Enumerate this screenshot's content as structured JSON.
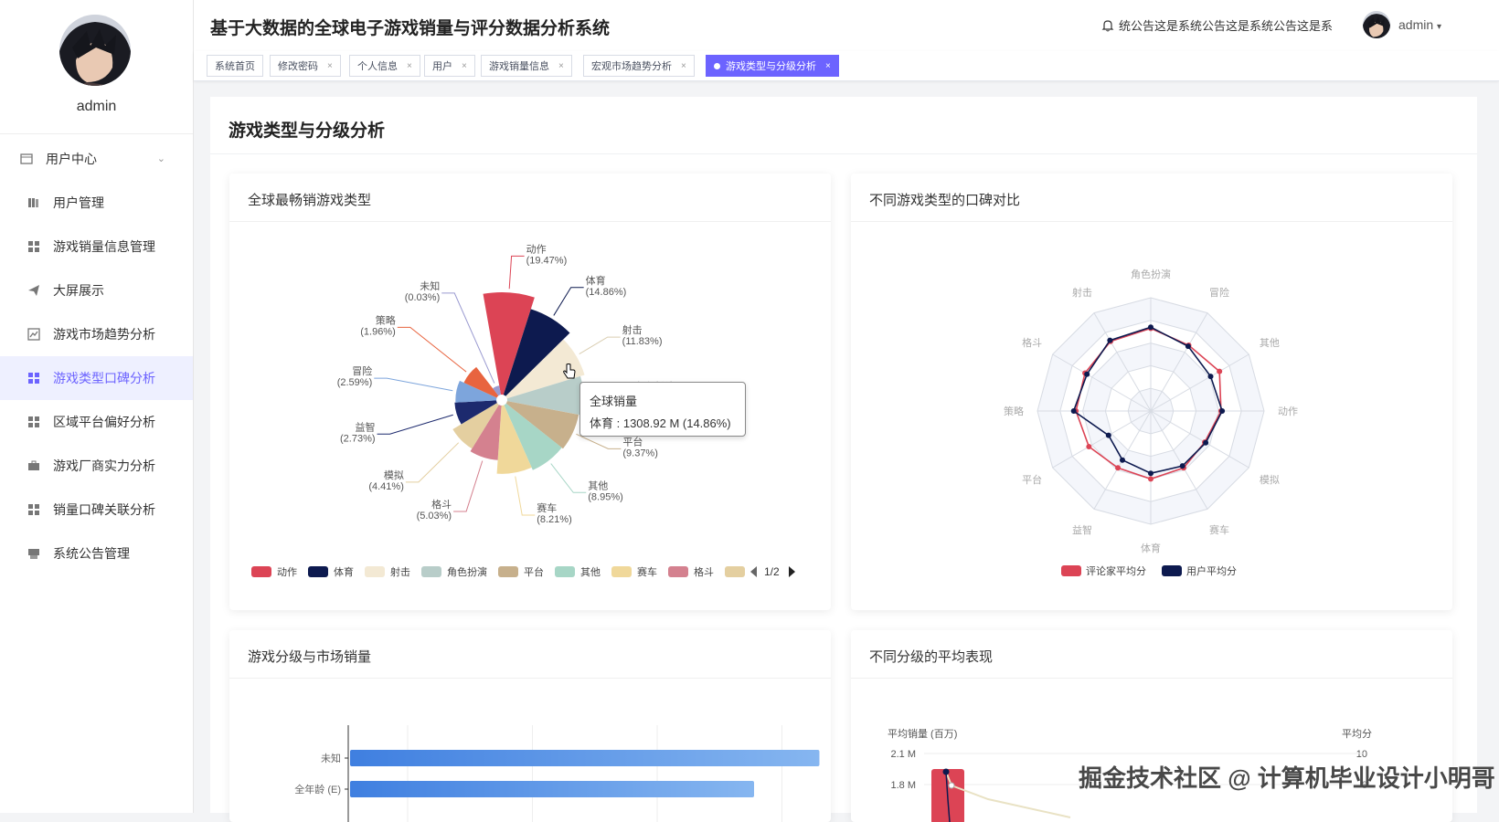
{
  "sidebar": {
    "username": "admin",
    "items": [
      {
        "label": "用户中心",
        "icon": "user-center-icon",
        "has_caret": true
      },
      {
        "label": "用户管理",
        "icon": "books-icon"
      },
      {
        "label": "游戏销量信息管理",
        "icon": "grid-icon"
      },
      {
        "label": "大屏展示",
        "icon": "send-icon"
      },
      {
        "label": "游戏市场趋势分析",
        "icon": "chart-icon"
      },
      {
        "label": "游戏类型口碑分析",
        "icon": "grid-icon",
        "active": true
      },
      {
        "label": "区域平台偏好分析",
        "icon": "grid-icon"
      },
      {
        "label": "游戏厂商实力分析",
        "icon": "briefcase-icon"
      },
      {
        "label": "销量口碑关联分析",
        "icon": "grid-icon"
      },
      {
        "label": "系统公告管理",
        "icon": "printer-icon"
      }
    ]
  },
  "header": {
    "title": "基于大数据的全球电子游戏销量与评分数据分析系统",
    "notice": "统公告这是系统公告这是系统公告这是系",
    "user": "admin"
  },
  "tabs": [
    {
      "label": "系统首页",
      "closable": false
    },
    {
      "label": "修改密码",
      "closable": true
    },
    {
      "label": "个人信息",
      "closable": true
    },
    {
      "label": "用户",
      "closable": true
    },
    {
      "label": "游戏销量信息",
      "closable": true
    },
    {
      "label": "宏观市场趋势分析",
      "closable": true
    },
    {
      "label": "游戏类型与分级分析",
      "closable": true,
      "active": true
    }
  ],
  "page": {
    "title": "游戏类型与分级分析"
  },
  "cards": {
    "pie_title": "全球最畅销游戏类型",
    "radar_title": "不同游戏类型的口碑对比",
    "bar_title": "游戏分级与市场销量",
    "dual_title": "不同分级的平均表现"
  },
  "tooltip": {
    "title": "全球销量",
    "value": "体育 : 1308.92 M (14.86%)"
  },
  "legend_pager": "1/2",
  "watermark": "掘金技术社区 @ 计算机毕业设计小明哥",
  "colors": {
    "accent": "#6c63ff",
    "red": "#dc4455",
    "navy": "#0d1a4f"
  },
  "chart_data": [
    {
      "type": "pie",
      "title": "全球最畅销游戏类型",
      "series": [
        {
          "name": "全球销量",
          "unit": "M",
          "values": [
            {
              "name": "动作",
              "pct": 19.47,
              "color": "#dc4455"
            },
            {
              "name": "体育",
              "pct": 14.86,
              "color": "#0d1a4f"
            },
            {
              "name": "射击",
              "pct": 11.83,
              "color": "#f3e9d4"
            },
            {
              "name": "角色扮演",
              "pct": null,
              "color": "#b8cdc9"
            },
            {
              "name": "平台",
              "pct": 9.37,
              "color": "#c7b08c"
            },
            {
              "name": "其他",
              "pct": 8.95,
              "color": "#a7d6c6"
            },
            {
              "name": "赛车",
              "pct": 8.21,
              "color": "#f0d89a"
            },
            {
              "name": "格斗",
              "pct": 5.03,
              "color": "#d4818f"
            },
            {
              "name": "模拟",
              "pct": 4.41,
              "color": "#e4cfa0"
            },
            {
              "name": "益智",
              "pct": 2.73,
              "color": "#1d2a6e"
            },
            {
              "name": "冒险",
              "pct": 2.59,
              "color": "#7da5dc"
            },
            {
              "name": "策略",
              "pct": 1.96,
              "color": "#e8643f"
            },
            {
              "name": "未知",
              "pct": 0.03,
              "color": "#9a9ad0"
            }
          ]
        }
      ],
      "legend_visible": [
        "动作",
        "体育",
        "射击",
        "角色扮演",
        "平台",
        "其他",
        "赛车",
        "格斗"
      ]
    },
    {
      "type": "radar",
      "title": "不同游戏类型的口碑对比",
      "indicators": [
        "角色扮演",
        "冒险",
        "其他",
        "动作",
        "模拟",
        "赛车",
        "体育",
        "益智",
        "平台",
        "策略",
        "格斗",
        "射击"
      ],
      "series": [
        {
          "name": "评论家平均分",
          "color": "#dc4455",
          "values": [
            0.73,
            0.67,
            0.7,
            0.62,
            0.55,
            0.58,
            0.6,
            0.58,
            0.63,
            0.66,
            0.67,
            0.71
          ]
        },
        {
          "name": "用户平均分",
          "color": "#0d1a4f",
          "values": [
            0.74,
            0.66,
            0.61,
            0.63,
            0.56,
            0.56,
            0.55,
            0.5,
            0.43,
            0.68,
            0.65,
            0.72
          ]
        }
      ]
    },
    {
      "type": "bar",
      "title": "游戏分级与市场销量",
      "orientation": "horizontal",
      "categories": [
        "未知",
        "全年龄 (E)"
      ],
      "values": [
        3.95,
        3.4
      ]
    },
    {
      "type": "bar",
      "title": "不同分级的平均表现",
      "ylabel": "平均销量 (百万)",
      "ylabel_right": "平均分",
      "y_ticks": [
        "2.1 M",
        "1.8 M"
      ],
      "y_right_ticks": [
        "10",
        "8"
      ]
    }
  ]
}
